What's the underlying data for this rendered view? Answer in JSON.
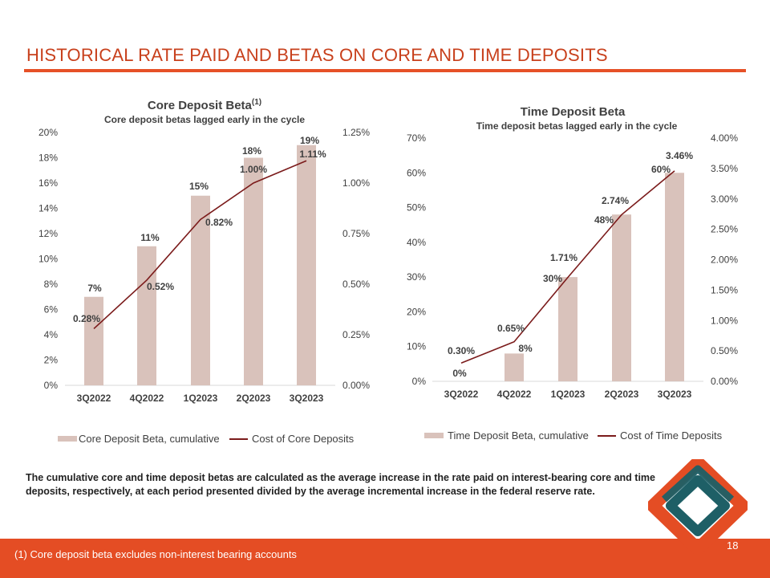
{
  "header": {
    "title": "HISTORICAL RATE PAID AND BETAS ON CORE AND TIME DEPOSITS"
  },
  "colors": {
    "accent": "#e44d24",
    "bar": "#d9c2bb",
    "line": "#7b1b1b",
    "logo_teal": "#1e5f66"
  },
  "chart_data": [
    {
      "type": "bar+line",
      "title": "Core Deposit Beta",
      "title_superscript": "(1)",
      "subtitle": "Core deposit betas lagged early in the cycle",
      "categories": [
        "3Q2022",
        "4Q2022",
        "1Q2023",
        "2Q2023",
        "3Q2023"
      ],
      "bar_series": {
        "name": "Core Deposit Beta, cumulative",
        "values": [
          7,
          11,
          15,
          18,
          19
        ],
        "labels": [
          "7%",
          "11%",
          "15%",
          "18%",
          "19%"
        ]
      },
      "line_series": {
        "name": "Cost of Core Deposits",
        "values": [
          0.28,
          0.52,
          0.82,
          1.0,
          1.11
        ],
        "labels": [
          "0.28%",
          "0.52%",
          "0.82%",
          "1.00%",
          "1.11%"
        ]
      },
      "ylim_left": [
        0,
        20
      ],
      "ylim_right": [
        0,
        1.25
      ],
      "yticks_left": [
        "0%",
        "2%",
        "4%",
        "6%",
        "8%",
        "10%",
        "12%",
        "14%",
        "16%",
        "18%",
        "20%"
      ],
      "yticks_right": [
        "0.00%",
        "0.25%",
        "0.50%",
        "0.75%",
        "1.00%",
        "1.25%"
      ],
      "legend_position": "bottom"
    },
    {
      "type": "bar+line",
      "title": "Time Deposit Beta",
      "subtitle": "Time deposit betas lagged early in the cycle",
      "categories": [
        "3Q2022",
        "4Q2022",
        "1Q2023",
        "2Q2023",
        "3Q2023"
      ],
      "bar_series": {
        "name": "Time Deposit Beta, cumulative",
        "values": [
          0,
          8,
          30,
          48,
          60
        ],
        "labels": [
          "0%",
          "8%",
          "30%",
          "48%",
          "60%"
        ]
      },
      "line_series": {
        "name": "Cost of Time Deposits",
        "values": [
          0.3,
          0.65,
          1.71,
          2.74,
          3.46
        ],
        "labels": [
          "0.30%",
          "0.65%",
          "1.71%",
          "2.74%",
          "3.46%"
        ]
      },
      "ylim_left": [
        0,
        70
      ],
      "ylim_right": [
        0,
        4.0
      ],
      "yticks_left": [
        "0%",
        "10%",
        "20%",
        "30%",
        "40%",
        "50%",
        "60%",
        "70%"
      ],
      "yticks_right": [
        "0.00%",
        "0.50%",
        "1.00%",
        "1.50%",
        "2.00%",
        "2.50%",
        "3.00%",
        "3.50%",
        "4.00%"
      ],
      "legend_position": "bottom"
    }
  ],
  "footnote": "The cumulative core and time deposit betas are calculated as the average increase in the rate paid on interest-bearing core and time deposits, respectively, at each period presented divided by the average incremental increase in the federal reserve rate.",
  "bottom_note": "(1) Core deposit beta excludes non-interest bearing accounts",
  "page_number": "18"
}
